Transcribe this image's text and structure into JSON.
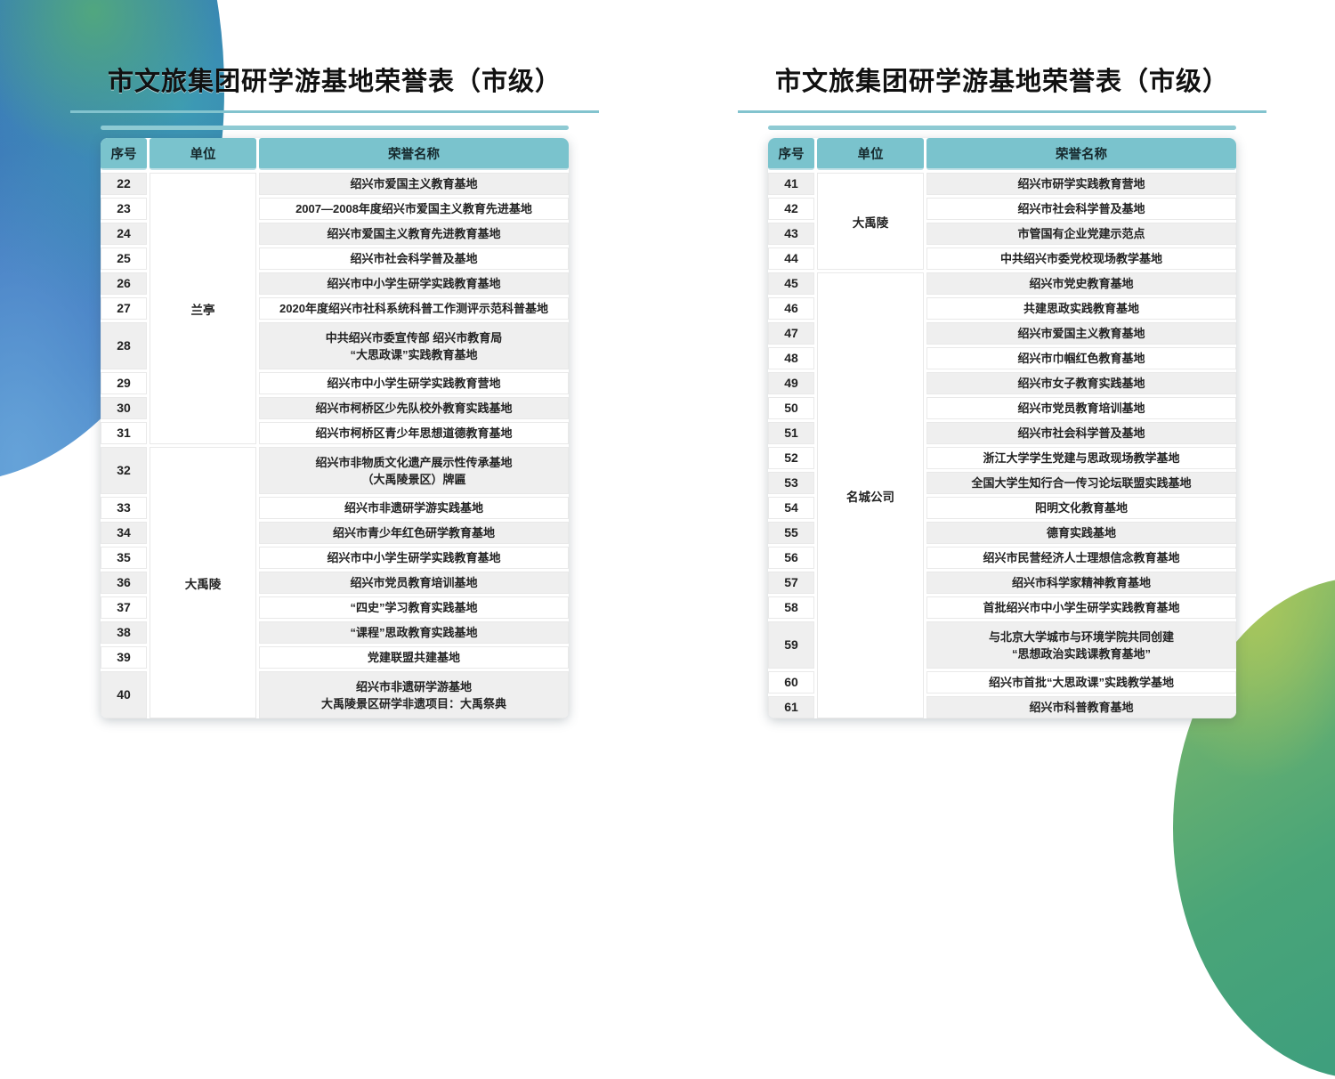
{
  "colors": {
    "header_teal": "#7ac3cd",
    "header_border": "#bfe0e6",
    "accent_bar": "#8ecad3",
    "underline": "#82c3ce",
    "row_alt": "#efefef",
    "cell_border": "#e9e9e9"
  },
  "tables": [
    {
      "title": "市文旅集团研学游基地荣誉表（市级）",
      "columns": [
        "序号",
        "单位",
        "荣誉名称"
      ],
      "groups": [
        {
          "unit": "兰亭",
          "rows": [
            {
              "no": "22",
              "honor": "绍兴市爱国主义教育基地"
            },
            {
              "no": "23",
              "honor": "2007—2008年度绍兴市爱国主义教育先进基地"
            },
            {
              "no": "24",
              "honor": "绍兴市爱国主义教育先进教育基地"
            },
            {
              "no": "25",
              "honor": "绍兴市社会科学普及基地"
            },
            {
              "no": "26",
              "honor": "绍兴市中小学生研学实践教育基地"
            },
            {
              "no": "27",
              "honor": "2020年度绍兴市社科系统科普工作测评示范科普基地"
            },
            {
              "no": "28",
              "honor": "中共绍兴市委宣传部 绍兴市教育局\n“大思政课”实践教育基地"
            },
            {
              "no": "29",
              "honor": "绍兴市中小学生研学实践教育营地"
            },
            {
              "no": "30",
              "honor": "绍兴市柯桥区少先队校外教育实践基地"
            },
            {
              "no": "31",
              "honor": "绍兴市柯桥区青少年思想道德教育基地"
            }
          ]
        },
        {
          "unit": "大禹陵",
          "rows": [
            {
              "no": "32",
              "honor": "绍兴市非物质文化遗产展示性传承基地\n（大禹陵景区）牌匾"
            },
            {
              "no": "33",
              "honor": "绍兴市非遗研学游实践基地"
            },
            {
              "no": "34",
              "honor": "绍兴市青少年红色研学教育基地"
            },
            {
              "no": "35",
              "honor": "绍兴市中小学生研学实践教育基地"
            },
            {
              "no": "36",
              "honor": "绍兴市党员教育培训基地"
            },
            {
              "no": "37",
              "honor": "“四史”学习教育实践基地"
            },
            {
              "no": "38",
              "honor": "“课程”思政教育实践基地"
            },
            {
              "no": "39",
              "honor": "党建联盟共建基地"
            },
            {
              "no": "40",
              "honor": "绍兴市非遗研学游基地\n大禹陵景区研学非遗项目：大禹祭典"
            }
          ]
        }
      ]
    },
    {
      "title": "市文旅集团研学游基地荣誉表（市级）",
      "columns": [
        "序号",
        "单位",
        "荣誉名称"
      ],
      "groups": [
        {
          "unit": "大禹陵",
          "rows": [
            {
              "no": "41",
              "honor": "绍兴市研学实践教育营地"
            },
            {
              "no": "42",
              "honor": "绍兴市社会科学普及基地"
            },
            {
              "no": "43",
              "honor": "市管国有企业党建示范点"
            },
            {
              "no": "44",
              "honor": "中共绍兴市委党校现场教学基地"
            }
          ]
        },
        {
          "unit": "名城公司",
          "rows": [
            {
              "no": "45",
              "honor": "绍兴市党史教育基地"
            },
            {
              "no": "46",
              "honor": "共建思政实践教育基地"
            },
            {
              "no": "47",
              "honor": "绍兴市爱国主义教育基地"
            },
            {
              "no": "48",
              "honor": "绍兴市巾帼红色教育基地"
            },
            {
              "no": "49",
              "honor": "绍兴市女子教育实践基地"
            },
            {
              "no": "50",
              "honor": "绍兴市党员教育培训基地"
            },
            {
              "no": "51",
              "honor": "绍兴市社会科学普及基地"
            },
            {
              "no": "52",
              "honor": "浙江大学学生党建与思政现场教学基地"
            },
            {
              "no": "53",
              "honor": "全国大学生知行合一传习论坛联盟实践基地"
            },
            {
              "no": "54",
              "honor": "阳明文化教育基地"
            },
            {
              "no": "55",
              "honor": "德育实践基地"
            },
            {
              "no": "56",
              "honor": "绍兴市民营经济人士理想信念教育基地"
            },
            {
              "no": "57",
              "honor": "绍兴市科学家精神教育基地"
            },
            {
              "no": "58",
              "honor": "首批绍兴市中小学生研学实践教育基地"
            },
            {
              "no": "59",
              "honor": "与北京大学城市与环境学院共同创建\n“思想政治实践课教育基地”"
            },
            {
              "no": "60",
              "honor": "绍兴市首批“大思政课”实践教学基地"
            },
            {
              "no": "61",
              "honor": "绍兴市科普教育基地"
            }
          ]
        }
      ]
    }
  ]
}
